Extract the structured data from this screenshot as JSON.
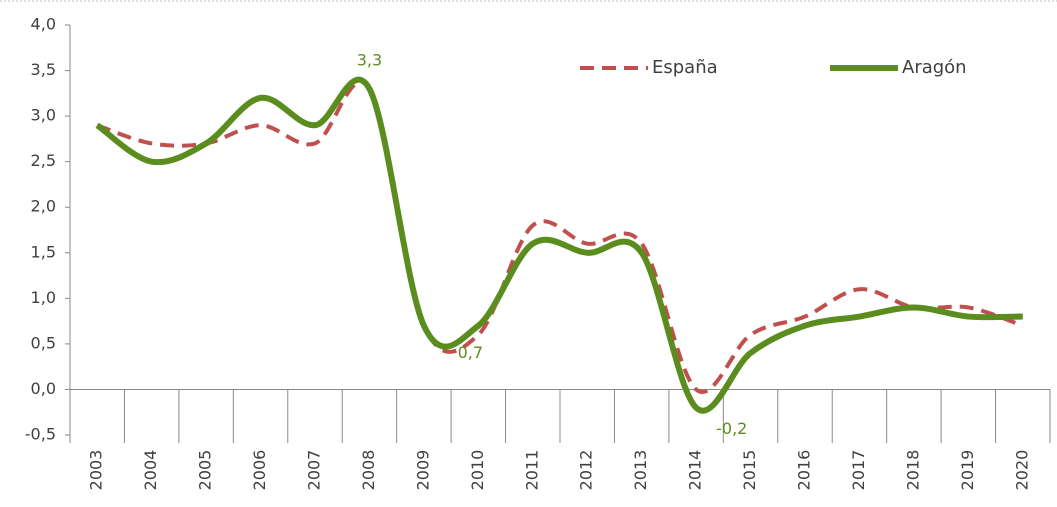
{
  "chart_data": {
    "type": "line",
    "categories": [
      "2003",
      "2004",
      "2005",
      "2006",
      "2007",
      "2008",
      "2009",
      "2010",
      "2011",
      "2012",
      "2013",
      "2014",
      "2015",
      "2016",
      "2017",
      "2018",
      "2019",
      "2020"
    ],
    "series": [
      {
        "name": "España",
        "color": "#c0504d",
        "dash": true,
        "values": [
          2.9,
          2.7,
          2.7,
          2.9,
          2.7,
          3.3,
          0.7,
          0.6,
          1.8,
          1.6,
          1.6,
          0.0,
          0.6,
          0.8,
          1.1,
          0.9,
          0.9,
          0.7
        ]
      },
      {
        "name": "Aragón",
        "color": "#5b8c1e",
        "dash": false,
        "values": [
          2.9,
          2.5,
          2.7,
          3.2,
          2.9,
          3.3,
          0.7,
          0.7,
          1.6,
          1.5,
          1.5,
          -0.2,
          0.4,
          0.7,
          0.8,
          0.9,
          0.8,
          0.8
        ],
        "value_labels": [
          null,
          null,
          null,
          null,
          null,
          "3,3",
          null,
          "0,7",
          null,
          null,
          null,
          "-0,2",
          null,
          null,
          null,
          null,
          null,
          null
        ]
      }
    ],
    "ylim": [
      -0.5,
      4.0
    ],
    "yticks": [
      {
        "value": -0.5,
        "label": "-0,5"
      },
      {
        "value": 0,
        "label": "0,0"
      },
      {
        "value": 0.5,
        "label": "0,5"
      },
      {
        "value": 1,
        "label": "1,0"
      },
      {
        "value": 1.5,
        "label": "1,5"
      },
      {
        "value": 2,
        "label": "2,0"
      },
      {
        "value": 2.5,
        "label": "2,5"
      },
      {
        "value": 3,
        "label": "3,0"
      },
      {
        "value": 3.5,
        "label": "3,5"
      },
      {
        "value": 4,
        "label": "4,0"
      }
    ],
    "legend": "top-right"
  }
}
